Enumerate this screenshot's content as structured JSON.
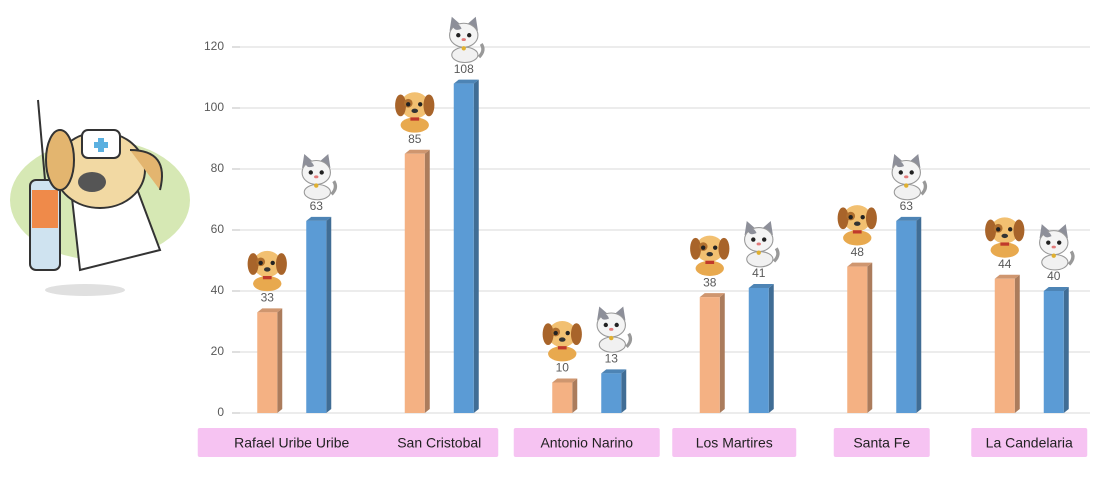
{
  "chart_data": {
    "type": "bar",
    "categories": [
      "Rafael Uribe Uribe",
      "San Cristobal",
      "Antonio Narino",
      "Los Martires",
      "Santa Fe",
      "La Candelaria"
    ],
    "series": [
      {
        "color": "#f4b183",
        "values": [
          33,
          85,
          10,
          38,
          48,
          44
        ]
      },
      {
        "color": "#5b9bd5",
        "values": [
          63,
          108,
          13,
          41,
          63,
          40
        ]
      }
    ],
    "ylim": [
      0,
      120
    ],
    "yticks": [
      0,
      20,
      40,
      60,
      80,
      100,
      120
    ],
    "grid": true
  }
}
